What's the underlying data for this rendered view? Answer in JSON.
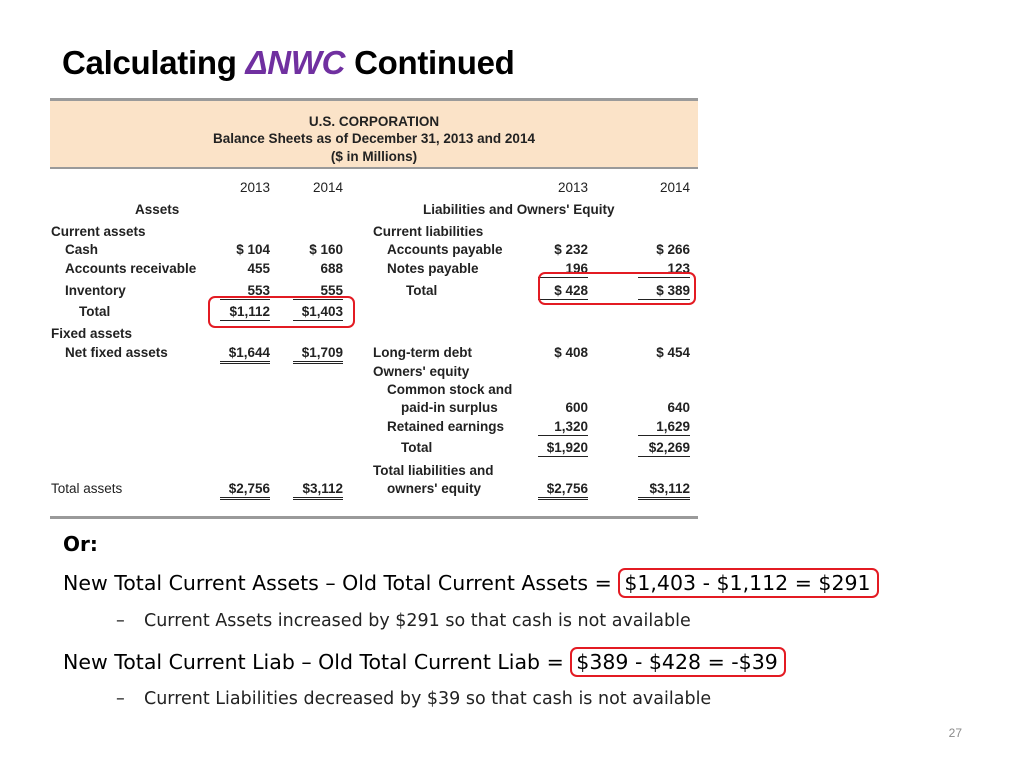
{
  "title": {
    "prefix": "Calculating ",
    "accent": "ΔNWC",
    "suffix": " Continued"
  },
  "balance_sheet": {
    "header": {
      "company": "U.S. CORPORATION",
      "subtitle": "Balance Sheets as of December 31, 2013 and 2014",
      "units": "($ in Millions)"
    },
    "years": [
      "2013",
      "2014"
    ],
    "assets_heading": "Assets",
    "liabilities_heading": "Liabilities and Owners' Equity",
    "assets": {
      "current_assets_label": "Current assets",
      "cash": {
        "label": "Cash",
        "v2013": "$  104",
        "v2014": "$  160"
      },
      "ar": {
        "label": "Accounts receivable",
        "v2013": "455",
        "v2014": "688"
      },
      "inventory": {
        "label": "Inventory",
        "v2013": "553",
        "v2014": "555"
      },
      "total_current": {
        "label": "Total",
        "v2013": "$1,112",
        "v2014": "$1,403"
      },
      "fixed_assets_label": "Fixed assets",
      "net_fixed": {
        "label": "Net fixed assets",
        "v2013": "$1,644",
        "v2014": "$1,709"
      },
      "total_assets": {
        "label": "Total assets",
        "v2013": "$2,756",
        "v2014": "$3,112"
      }
    },
    "liabilities": {
      "current_liabilities_label": "Current liabilities",
      "ap": {
        "label": "Accounts payable",
        "v2013": "$  232",
        "v2014": "$  266"
      },
      "np": {
        "label": "Notes payable",
        "v2013": "196",
        "v2014": "123"
      },
      "total_current": {
        "label": "Total",
        "v2013": "$  428",
        "v2014": "$  389"
      },
      "ltd": {
        "label": "Long-term debt",
        "v2013": "$  408",
        "v2014": "$  454"
      },
      "owners_equity_label": "Owners' equity",
      "common_stock_line1": "Common stock and",
      "common_stock": {
        "label": "paid-in surplus",
        "v2013": "600",
        "v2014": "640"
      },
      "retained": {
        "label": "Retained earnings",
        "v2013": "1,320",
        "v2014": "1,629"
      },
      "total_equity": {
        "label": "Total",
        "v2013": "$1,920",
        "v2014": "$2,269"
      },
      "total_le_line1": "Total liabilities and",
      "total_le": {
        "label": "owners' equity",
        "v2013": "$2,756",
        "v2014": "$3,112"
      }
    }
  },
  "body": {
    "or_label": "Or:",
    "line1_text": "New Total Current Assets – Old Total Current Assets = ",
    "line1_calc": "$1,403 - $1,112 = $291",
    "sub1_dash": "–",
    "sub1_text": "Current Assets increased by $291 so that cash is not available",
    "line2_text": "New Total Current Liab – Old Total Current Liab = ",
    "line2_calc": "$389 - $428 = -$39",
    "sub2_dash": "–",
    "sub2_text": "Current Liabilities decreased by $39 so that cash is not available"
  },
  "page_number": "27",
  "colors": {
    "accent": "#7030a0",
    "highlight": "#e31b23",
    "header_band": "#fbe3c8"
  }
}
